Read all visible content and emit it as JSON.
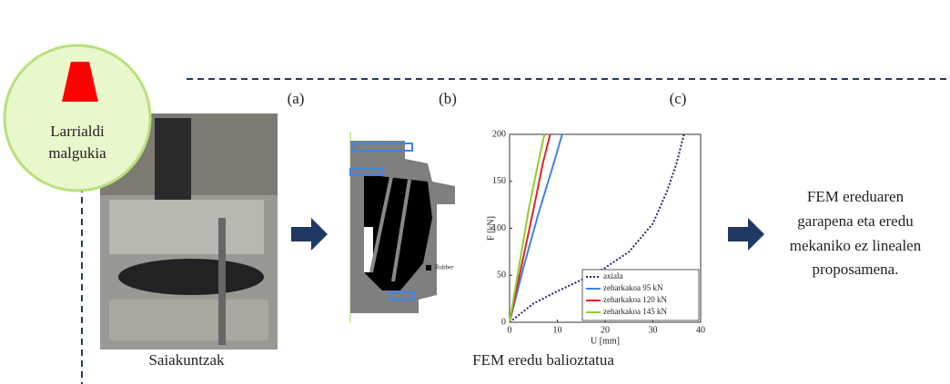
{
  "circle": {
    "label_lines": [
      "Larrialdi",
      "malgukia"
    ]
  },
  "panel_labels": [
    "(a)",
    "(b)",
    "(c)"
  ],
  "captions": {
    "left": "Saiakuntzak",
    "middle": "FEM eredu balioztatua"
  },
  "fem_label": "Rubber",
  "result_lines": [
    "FEM ereduaren",
    "garapena eta eredu",
    "mekaniko ez linealen",
    "proposamena."
  ],
  "chart_data": {
    "type": "line",
    "x_label": "U [mm]",
    "y_label": "F [kN]",
    "xlim": [
      0,
      40
    ],
    "xticks": [
      0,
      10,
      20,
      30,
      40
    ],
    "ylim": [
      0,
      200
    ],
    "yticks": [
      0,
      50,
      100,
      150,
      200
    ],
    "series": [
      {
        "name": "axiala",
        "color": "#1f2a6b",
        "dash": "dotted",
        "x": [
          0,
          5,
          10,
          15,
          20,
          25,
          30,
          33,
          35,
          36.5
        ],
        "values": [
          0,
          20,
          33,
          45,
          58,
          75,
          105,
          140,
          170,
          200
        ]
      },
      {
        "name": "zeharkakoa 95 kN",
        "color": "#3a86e8",
        "dash": "solid",
        "x": [
          0,
          3,
          6,
          9,
          11
        ],
        "values": [
          0,
          60,
          115,
          165,
          200
        ]
      },
      {
        "name": "zeharkakoa 120 kN",
        "color": "#e8202a",
        "dash": "solid",
        "x": [
          0,
          2.5,
          5,
          7,
          8.5
        ],
        "values": [
          0,
          60,
          120,
          170,
          200
        ]
      },
      {
        "name": "zeharkakoa 145 kN",
        "color": "#8cd12a",
        "dash": "solid",
        "x": [
          0,
          2,
          4,
          6,
          7.3
        ],
        "values": [
          0,
          60,
          120,
          170,
          200
        ]
      }
    ]
  }
}
